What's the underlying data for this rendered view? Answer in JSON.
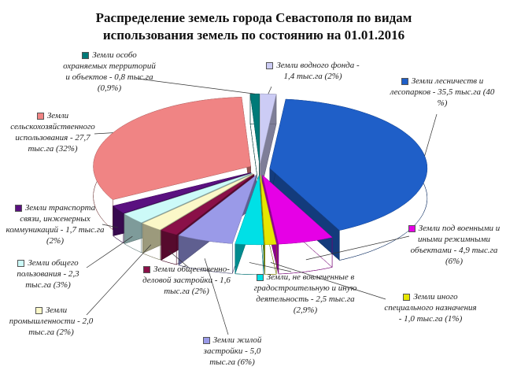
{
  "chart_data": {
    "type": "pie",
    "title": "Распределение земель города Севастополя по видам использования земель по состоянию на 01.01.2016",
    "categories": [
      "Земли водного фонда -",
      "Земли лесничеств и лесопарков -",
      "Земли под военными и иными режимными объектами -",
      "Земли иного специального назначения -",
      "Земли, не вовлеченные в градостроительную и иную деятельность -",
      "Земли жилой застройки -",
      "Земли общественно-деловой застройки -",
      "Земли промышленности -",
      "Земли общего пользования -",
      "Земли транспорта связи, инженерных коммуникаций -",
      "Земли сельскохозяйственного использования -",
      "Земли особо охраняемых территорий и объектов -"
    ],
    "values": [
      1.4,
      35.5,
      4.9,
      1.0,
      2.5,
      5.0,
      1.6,
      2.0,
      2.3,
      1.7,
      27.7,
      0.8
    ],
    "value_labels": [
      "1,4 тыс.га (2%)",
      "35,5 тыс.га (40 %)",
      "4,9 тыс.га (6%)",
      "1,0 тыс.га (1%)",
      "2,5 тыс.га (2,9%)",
      "5,0 тыс.га (6%)",
      "1,6 тыс.га (2%)",
      "2,0 тыс.га (2%)",
      "2,3 тыс.га (3%)",
      "1,7 тыс.га (2%)",
      "27,7 тыс.га (32%)",
      "0,8 тыс.га (0,9%)"
    ],
    "colors": [
      "#ccccf5",
      "#1f5fc8",
      "#e600e6",
      "#e6e600",
      "#00e0e6",
      "#9a9ae8",
      "#8a1048",
      "#fbf8c8",
      "#ccfaf8",
      "#5a1080",
      "#f08484",
      "#007a78"
    ]
  }
}
